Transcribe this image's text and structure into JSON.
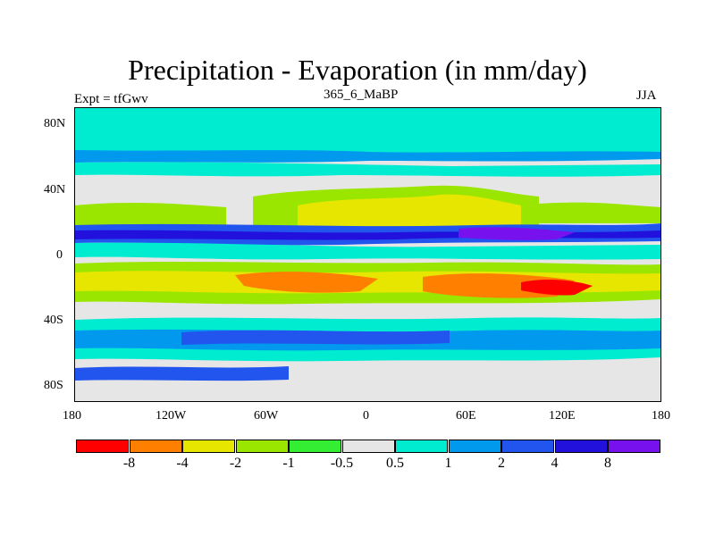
{
  "header": {
    "title": "Precipitation - Evaporation (in mm/day)",
    "left_label": "Expt = tfGwv",
    "center_label": "365_6_MaBP",
    "right_label": "JJA"
  },
  "axes": {
    "lat_labels": [
      "80N",
      "40N",
      "0",
      "40S",
      "80S"
    ],
    "lon_labels": [
      "180",
      "120W",
      "60W",
      "0",
      "60E",
      "120E",
      "180"
    ]
  },
  "colorbar": {
    "colors": [
      "#ff0000",
      "#ff7f00",
      "#e6e600",
      "#9ae600",
      "#33ee33",
      "#e6e6e6",
      "#00ecd0",
      "#0099ee",
      "#2255ee",
      "#2211dd",
      "#7711ee"
    ],
    "labels": [
      "-8",
      "-4",
      "-2",
      "-1",
      "-0.5",
      "0.5",
      "1",
      "2",
      "4",
      "8"
    ]
  }
}
